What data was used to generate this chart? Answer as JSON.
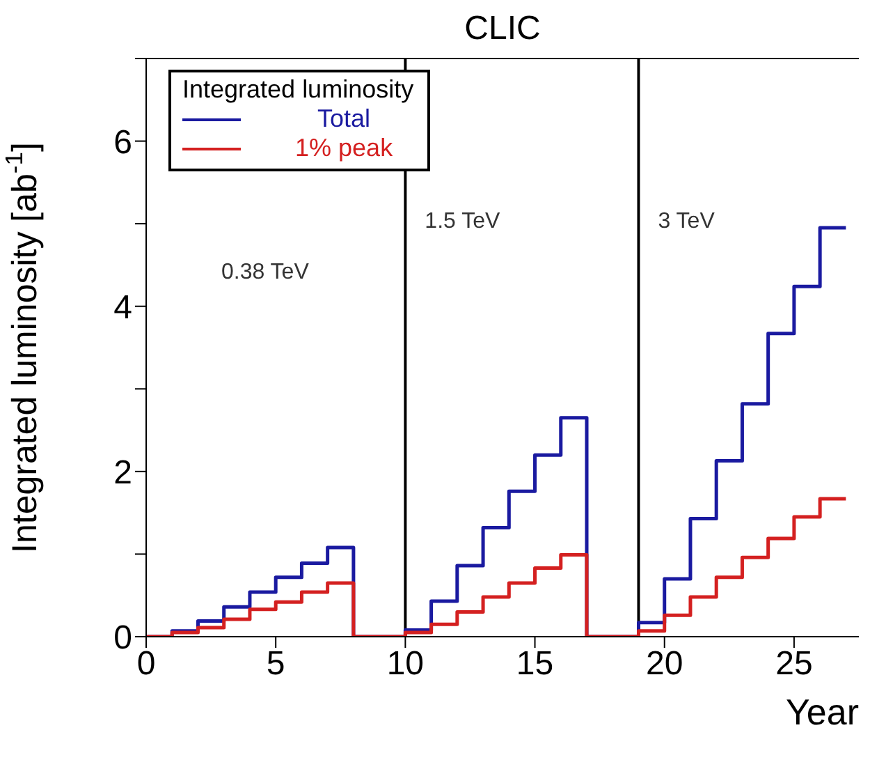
{
  "chart_data": {
    "type": "step",
    "title": "CLIC",
    "xlabel": "Year",
    "ylabel": "Integrated luminosity [ab$^{-1}$]",
    "legend_title": "Integrated luminosity",
    "x": [
      0,
      1,
      2,
      3,
      4,
      5,
      6,
      7,
      8,
      9,
      10,
      11,
      12,
      13,
      14,
      15,
      16,
      17,
      18,
      19,
      20,
      21,
      22,
      23,
      24,
      25,
      26,
      27
    ],
    "series": [
      {
        "name": "Total",
        "color": "#1a1aa0",
        "values": [
          0,
          0,
          0.07,
          0.19,
          0.36,
          0.54,
          0.72,
          0.89,
          1.08,
          0,
          0,
          0.08,
          0.43,
          0.86,
          1.32,
          1.76,
          2.2,
          2.65,
          0,
          0,
          0.17,
          0.7,
          1.43,
          2.13,
          2.82,
          3.67,
          4.24,
          4.95
        ]
      },
      {
        "name": "1% peak",
        "color": "#d42020",
        "values": [
          0,
          0,
          0.05,
          0.11,
          0.21,
          0.33,
          0.42,
          0.54,
          0.65,
          0,
          0,
          0.05,
          0.15,
          0.3,
          0.48,
          0.65,
          0.83,
          0.99,
          0,
          0,
          0.07,
          0.26,
          0.48,
          0.72,
          0.96,
          1.19,
          1.45,
          1.67
        ]
      }
    ],
    "xlim": [
      0,
      27.5
    ],
    "xticks": [
      0,
      5,
      10,
      15,
      20,
      25
    ],
    "ylim": [
      0,
      7
    ],
    "yticks": [
      0,
      {
        "value": 1,
        "label": null
      },
      2,
      {
        "value": 3,
        "label": null
      },
      4,
      {
        "value": 5,
        "label": null
      },
      6,
      {
        "value": 7,
        "label": null
      }
    ],
    "ref_lines": [
      {
        "axis": "x",
        "value": 10,
        "label": "1.5 TeV",
        "color": "#000000"
      },
      {
        "axis": "x",
        "value": 19,
        "label": "3 TeV",
        "color": "#000000"
      }
    ],
    "annotations": [
      "0.38 TeV"
    ],
    "legend": "top left",
    "marker": "none",
    "line_style": "solid"
  }
}
